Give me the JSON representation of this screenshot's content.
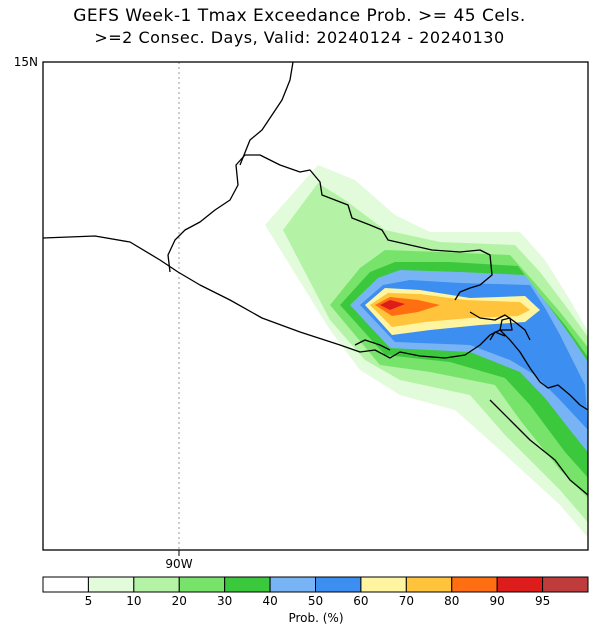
{
  "title": {
    "line1": "GEFS Week-1 Tmax Exceedance Prob. >= 45 Cels.",
    "line2": ">=2 Consec. Days, Valid: 20240124 - 20240130"
  },
  "map": {
    "lat_label": "15N",
    "lon_label": "90W",
    "region": "Central America Pacific coast (Guatemala / El Salvador / Honduras)"
  },
  "colorbar": {
    "label": "Prob. (%)",
    "ticks": [
      "5",
      "10",
      "20",
      "30",
      "40",
      "50",
      "60",
      "70",
      "80",
      "90",
      "95"
    ],
    "colors": [
      "#ffffff",
      "#e2fbda",
      "#b4f3a6",
      "#78e36a",
      "#3cc83c",
      "#78b4f5",
      "#3c8ef0",
      "#fff5a0",
      "#ffc33c",
      "#ff6e10",
      "#dd1c1c",
      "#c03c3c"
    ]
  }
}
